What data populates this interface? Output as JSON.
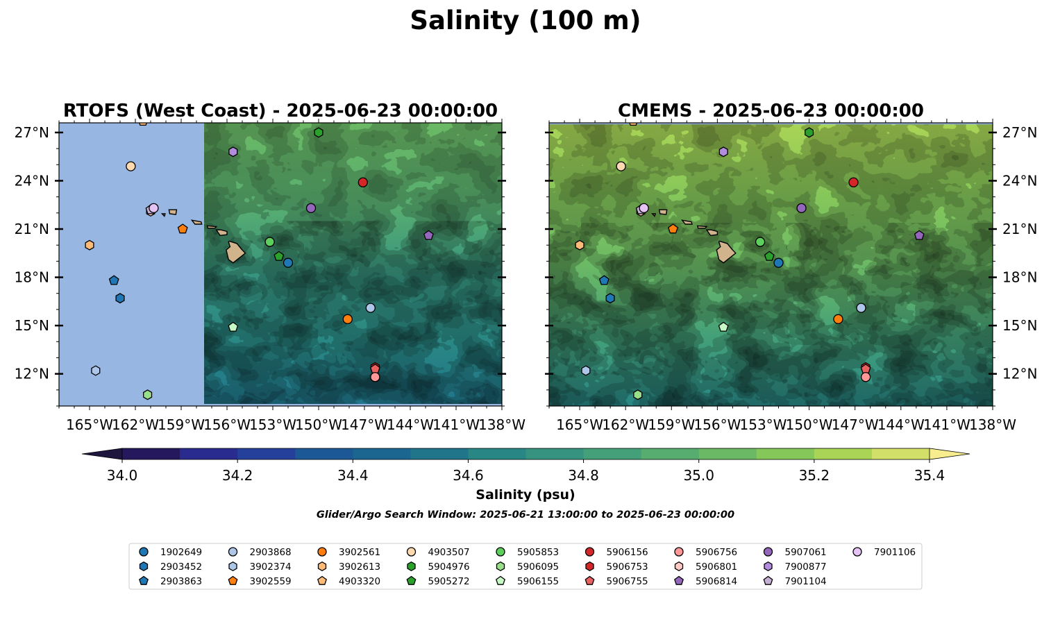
{
  "chart_data": {
    "type": "map_contour",
    "title": "Salinity (100 m)",
    "panels": [
      {
        "title": "RTOFS (West Coast) - 2025-06-23 00:00:00",
        "data_lon_min": -157.5
      },
      {
        "title": "CMEMS - 2025-06-23 00:00:00",
        "data_lat_max": 27.5
      }
    ],
    "extent": {
      "lon": [
        -167,
        -138
      ],
      "lat": [
        10,
        27.6
      ]
    },
    "x_ticks": [
      "165°W",
      "162°W",
      "159°W",
      "156°W",
      "153°W",
      "150°W",
      "147°W",
      "144°W",
      "141°W",
      "138°W"
    ],
    "x_tick_values": [
      -165,
      -162,
      -159,
      -156,
      -153,
      -150,
      -147,
      -144,
      -141,
      -138
    ],
    "y_ticks": [
      "27°N",
      "24°N",
      "21°N",
      "18°N",
      "15°N",
      "12°N"
    ],
    "y_tick_values": [
      27,
      24,
      21,
      18,
      15,
      12
    ],
    "colorbar": {
      "label": "Salinity (psu)",
      "levels": [
        34.0,
        34.1,
        34.2,
        34.3,
        34.4,
        34.5,
        34.6,
        34.7,
        34.8,
        34.9,
        35.0,
        35.1,
        35.2,
        35.3,
        35.4
      ],
      "tick_labels": [
        "34.0",
        "34.2",
        "34.4",
        "34.6",
        "34.8",
        "35.0",
        "35.2",
        "35.4"
      ],
      "tick_values": [
        34.0,
        34.2,
        34.4,
        34.6,
        34.8,
        35.0,
        35.2,
        35.4
      ],
      "colors": [
        "#25185c",
        "#2a2b8f",
        "#24409a",
        "#1d5896",
        "#1b6690",
        "#20758a",
        "#288684",
        "#36937f",
        "#44a078",
        "#57ad70",
        "#6bb965",
        "#86c75a",
        "#a9d455",
        "#d2df68"
      ],
      "under_color": "#1f1640",
      "over_color": "#f7ec8e",
      "extend": "both"
    },
    "subtitle": "Glider/Argo Search Window: 2025-06-21 13:00:00 to 2025-06-23 00:00:00",
    "land_color": "#d2b48c",
    "ocean_fill_color": "#97b6e1",
    "floats": [
      {
        "id": "1902649",
        "color": "#1f77b4",
        "marker": "circle",
        "lon": -152.0,
        "lat": 18.9
      },
      {
        "id": "2903452",
        "color": "#1f77b4",
        "marker": "hexagon",
        "lon": -163.0,
        "lat": 16.7
      },
      {
        "id": "2903863",
        "color": "#1f77b4",
        "marker": "pentagon",
        "lon": -163.4,
        "lat": 17.8
      },
      {
        "id": "2903868",
        "color": "#aec7e8",
        "marker": "circle",
        "lon": -146.6,
        "lat": 16.1
      },
      {
        "id": "3902374",
        "color": "#aec7e8",
        "marker": "hexagon",
        "lon": -164.6,
        "lat": 12.2
      },
      {
        "id": "3902559",
        "color": "#ff7f0e",
        "marker": "pentagon",
        "lon": -158.9,
        "lat": 21.0
      },
      {
        "id": "3902561",
        "color": "#ff7f0e",
        "marker": "circle",
        "lon": -148.1,
        "lat": 15.4
      },
      {
        "id": "3902613",
        "color": "#ffbb78",
        "marker": "hexagon",
        "lon": -165.0,
        "lat": 20.0
      },
      {
        "id": "4903320",
        "color": "#ffbb78",
        "marker": "pentagon",
        "lon": -161.5,
        "lat": 27.7
      },
      {
        "id": "4903507",
        "color": "#ffdab0",
        "marker": "circle",
        "lon": -162.3,
        "lat": 24.9
      },
      {
        "id": "5904976",
        "color": "#2ca02c",
        "marker": "hexagon",
        "lon": -150.0,
        "lat": 27.0
      },
      {
        "id": "5905272",
        "color": "#2ca02c",
        "marker": "pentagon",
        "lon": -152.6,
        "lat": 19.3
      },
      {
        "id": "5905853",
        "color": "#5ccf5c",
        "marker": "circle",
        "lon": -153.2,
        "lat": 20.2
      },
      {
        "id": "5906095",
        "color": "#98df8a",
        "marker": "hexagon",
        "lon": -161.2,
        "lat": 10.7
      },
      {
        "id": "5906155",
        "color": "#c7f7c5",
        "marker": "pentagon",
        "lon": -155.6,
        "lat": 14.9
      },
      {
        "id": "5906156",
        "color": "#d62728",
        "marker": "circle",
        "lon": -147.1,
        "lat": 23.9
      },
      {
        "id": "5906753",
        "color": "#d62728",
        "marker": "hexagon",
        "lon": -146.3,
        "lat": 12.4
      },
      {
        "id": "5906755",
        "color": "#e8605f",
        "marker": "pentagon",
        "lon": -146.3,
        "lat": 12.3
      },
      {
        "id": "5906756",
        "color": "#ff9896",
        "marker": "circle",
        "lon": -146.3,
        "lat": 11.8
      },
      {
        "id": "5906801",
        "color": "#ffc9c6",
        "marker": "hexagon",
        "lon": -161.0,
        "lat": 22.1
      },
      {
        "id": "5906814",
        "color": "#9467bd",
        "marker": "pentagon",
        "lon": -142.8,
        "lat": 20.6
      },
      {
        "id": "5907061",
        "color": "#9467bd",
        "marker": "circle",
        "lon": -150.5,
        "lat": 22.3
      },
      {
        "id": "7900877",
        "color": "#b18ddb",
        "marker": "hexagon",
        "lon": -155.6,
        "lat": 25.8
      },
      {
        "id": "7901104",
        "color": "#c5b0d5",
        "marker": "pentagon",
        "lon": -161.0,
        "lat": 22.2
      },
      {
        "id": "7901106",
        "color": "#e5c4f5",
        "marker": "circle",
        "lon": -160.8,
        "lat": 22.3
      }
    ]
  }
}
